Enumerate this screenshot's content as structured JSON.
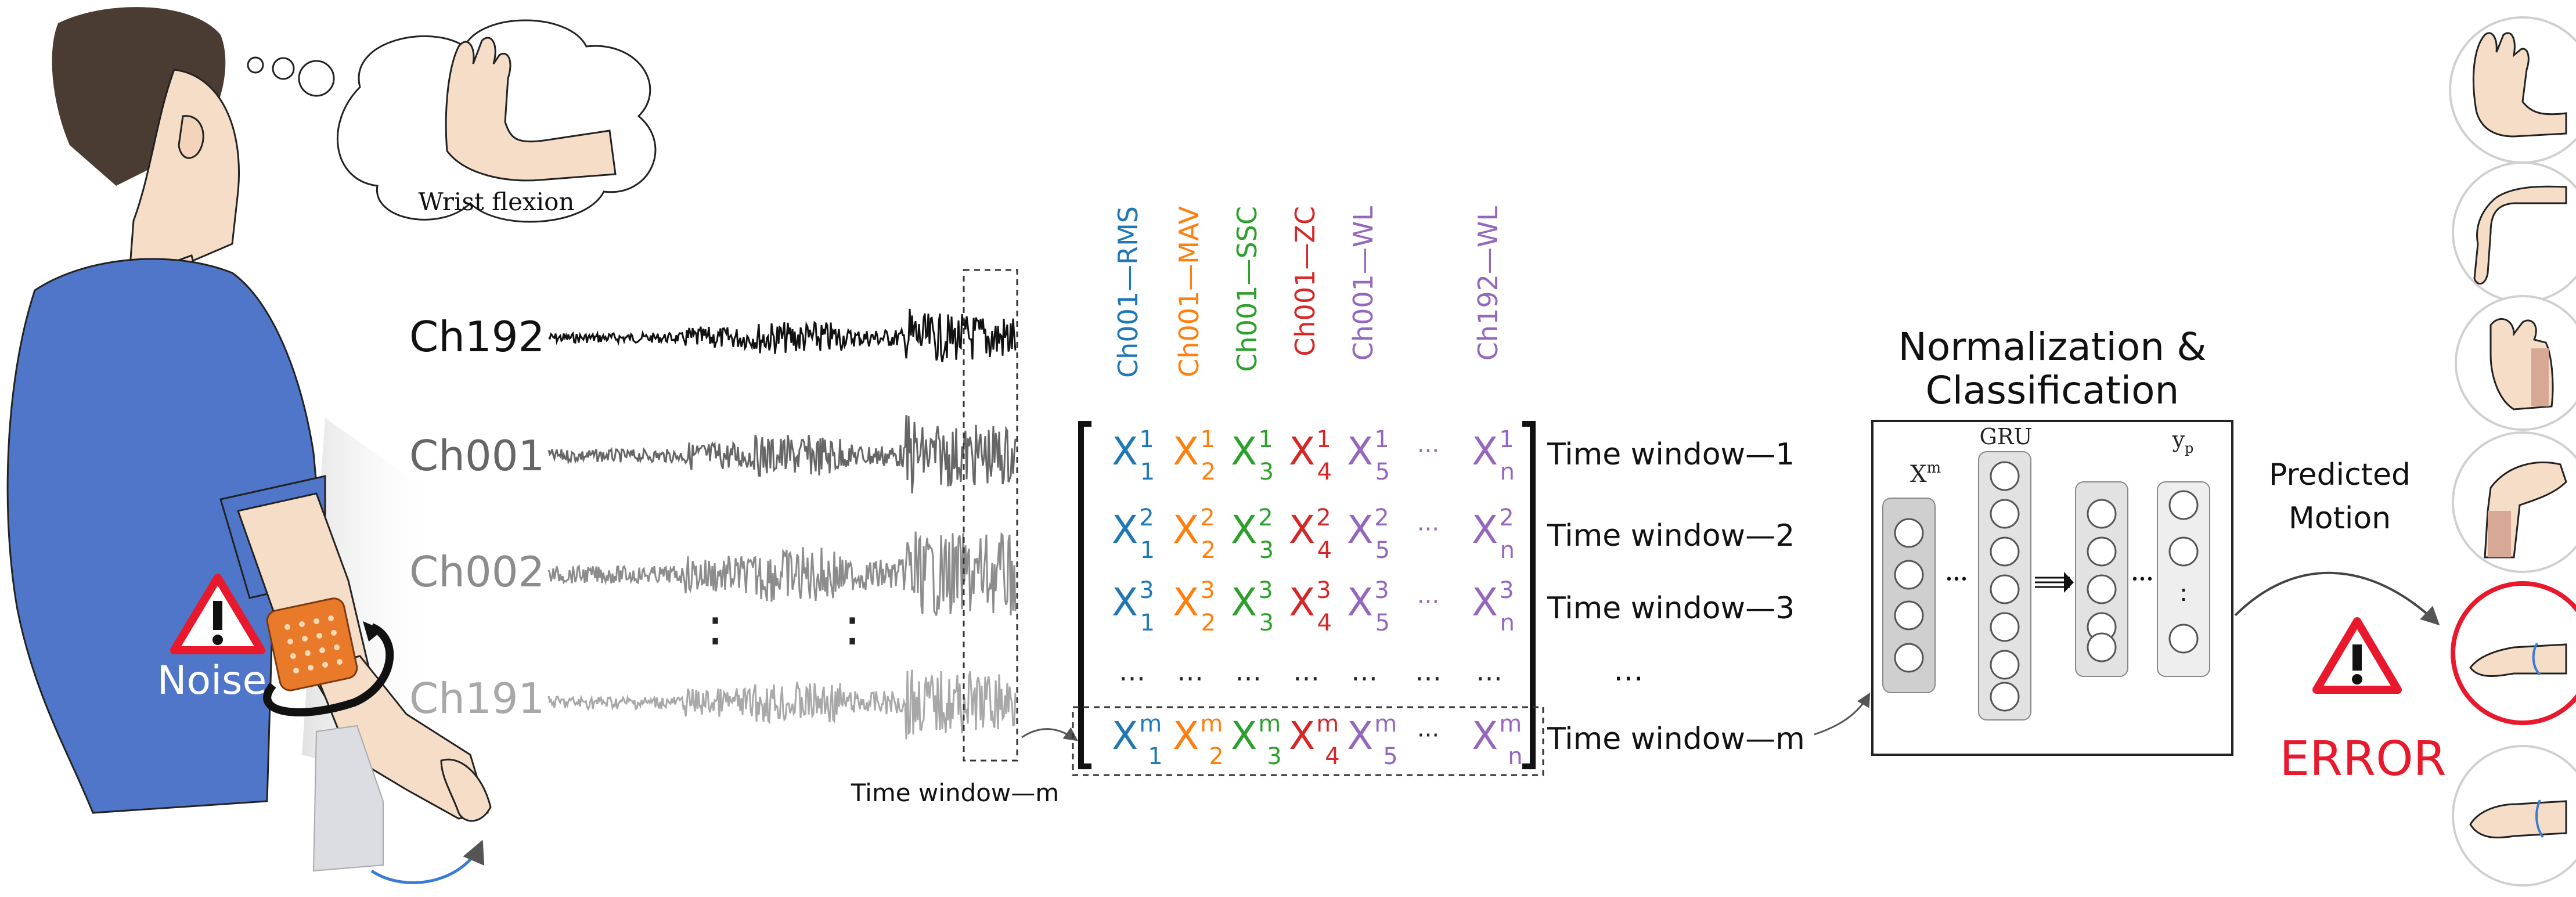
{
  "thought_bubble": {
    "label": "Wrist flexion"
  },
  "noise": {
    "label": "Noise",
    "icon": "warning-icon"
  },
  "channels": [
    {
      "label": "Ch192",
      "color": "#111111"
    },
    {
      "label": "Ch001",
      "color": "#666666"
    },
    {
      "label": "Ch002",
      "color": "#8c8c8c"
    },
    {
      "label": "Ch191",
      "color": "#a8a8a8"
    }
  ],
  "channel_dots": ":",
  "time_window_caption": "Time window—m",
  "feature_headers": [
    {
      "label": "Ch001—RMS",
      "color": "#1f77b4"
    },
    {
      "label": "Ch001—MAV",
      "color": "#ff7f0e"
    },
    {
      "label": "Ch001—SSC",
      "color": "#2ca02c"
    },
    {
      "label": "Ch001—ZC",
      "color": "#d62728"
    },
    {
      "label": "Ch001—WL",
      "color": "#9467bd"
    },
    {
      "label": "Ch192—WL",
      "color": "#9467bd"
    }
  ],
  "matrix": {
    "base": "X",
    "subscripts": [
      "1",
      "2",
      "3",
      "4",
      "5",
      "n"
    ],
    "row_superscripts": [
      "1",
      "2",
      "3",
      "m"
    ],
    "ellipsis": "···",
    "row_dots": "…"
  },
  "time_windows": [
    "Time window—1",
    "Time window—2",
    "Time window—3",
    "…",
    "Time window—m"
  ],
  "classifier": {
    "title_line1": "Normalization &",
    "title_line2": "Classification",
    "input_label": "X",
    "input_sup": "m",
    "gru_label": "GRU",
    "output_label": "y",
    "output_sub": "p",
    "dots": "•••"
  },
  "predicted": {
    "line1": "Predicted",
    "line2": "Motion"
  },
  "error": {
    "label": "ERROR",
    "color": "#e8192c"
  },
  "gesture_icons": [
    "hand-open-icon",
    "wrist-flexion-icon",
    "hand-side-icon",
    "hand-extension-icon",
    "hand-supination-icon",
    "hand-pronation-icon"
  ]
}
